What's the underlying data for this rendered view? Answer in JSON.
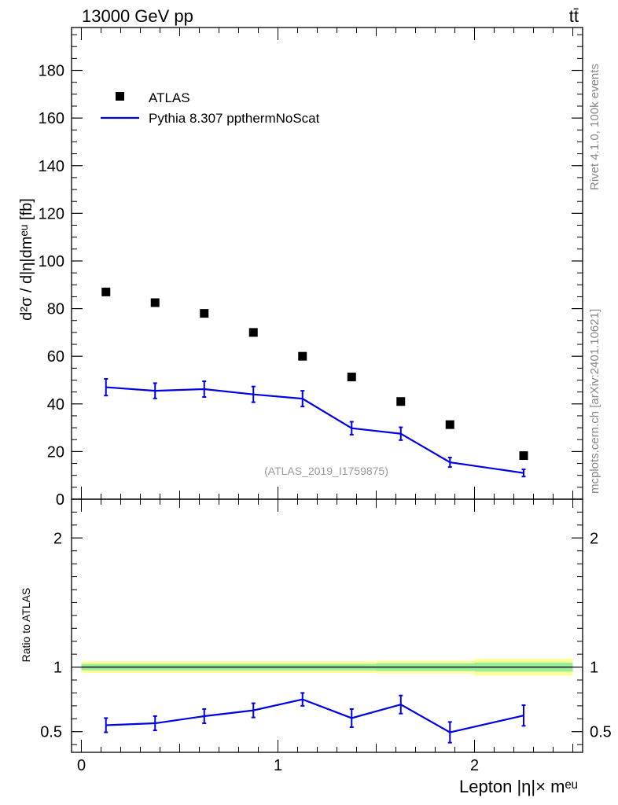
{
  "header": {
    "energy_label": "13000 GeV pp",
    "process_label": "tt̄"
  },
  "side_labels": {
    "rivet": "Rivet 4.1.0,  100k events",
    "source": "mcplots.cern.ch [arXiv:2401.10621]"
  },
  "analysis_id": "(ATLAS_2019_I1759875)",
  "colors": {
    "mc": "#0000e6",
    "data": "#000000",
    "band_yellow": "#ffff99",
    "band_green": "#99ee99",
    "ref_line": "#000000"
  },
  "chart_data": [
    {
      "type": "scatter",
      "panel": "main",
      "ylabel": "d²σ / d|η|dmᵉᵘ [fb]",
      "ylim": [
        0,
        198
      ],
      "xlim": [
        -0.05,
        2.55
      ],
      "yticks": [
        0,
        20,
        40,
        60,
        80,
        100,
        120,
        140,
        160,
        180
      ],
      "ytick_labels": [
        "0",
        "20",
        "40",
        "60",
        "80",
        "100",
        "120",
        "140",
        "160",
        "180"
      ],
      "legend": {
        "placement": "top-left",
        "entries": [
          "ATLAS",
          "Pythia 8.307 ppthermNoScat"
        ]
      },
      "x": [
        0.125,
        0.375,
        0.625,
        0.875,
        1.125,
        1.375,
        1.625,
        1.875,
        2.25
      ],
      "series": [
        {
          "name": "ATLAS",
          "style": "markers",
          "values": [
            87,
            82.5,
            78,
            70,
            60,
            51.3,
            41,
            31.3,
            18.3
          ]
        },
        {
          "name": "Pythia 8.307 ppthermNoScat",
          "style": "line",
          "values": [
            47,
            45.5,
            46.2,
            44,
            42.2,
            29.8,
            27.5,
            15.5,
            11
          ],
          "errors": [
            3.5,
            3.2,
            3.3,
            3.3,
            3.3,
            2.7,
            2.7,
            2.0,
            1.5
          ]
        }
      ]
    },
    {
      "type": "line",
      "panel": "ratio",
      "ylabel": "Ratio to ATLAS",
      "xlabel": "Lepton |η|× mᵉᵘ",
      "ylim": [
        0.34,
        2.3
      ],
      "xlim": [
        -0.05,
        2.55
      ],
      "yticks": [
        0.5,
        1,
        2
      ],
      "ytick_labels": [
        "0.5",
        "1",
        "2"
      ],
      "xticks": [
        0,
        1,
        2
      ],
      "xtick_labels": [
        "0",
        "1",
        "2"
      ],
      "x": [
        0.125,
        0.375,
        0.625,
        0.875,
        1.125,
        1.375,
        1.625,
        1.875,
        2.25
      ],
      "series": [
        {
          "name": "Pythia 8.307 ppthermNoScat",
          "values": [
            0.55,
            0.565,
            0.62,
            0.665,
            0.75,
            0.605,
            0.71,
            0.495,
            0.625
          ],
          "errors": [
            0.055,
            0.055,
            0.055,
            0.055,
            0.05,
            0.07,
            0.07,
            0.08,
            0.08
          ]
        }
      ],
      "bands": {
        "edges": [
          0,
          0.25,
          0.5,
          0.75,
          1.0,
          1.25,
          1.5,
          1.75,
          2.0,
          2.5
        ],
        "yellow": [
          0.045,
          0.045,
          0.045,
          0.045,
          0.045,
          0.045,
          0.05,
          0.05,
          0.065
        ],
        "green": [
          0.025,
          0.025,
          0.025,
          0.025,
          0.025,
          0.025,
          0.03,
          0.03,
          0.035
        ]
      }
    }
  ]
}
